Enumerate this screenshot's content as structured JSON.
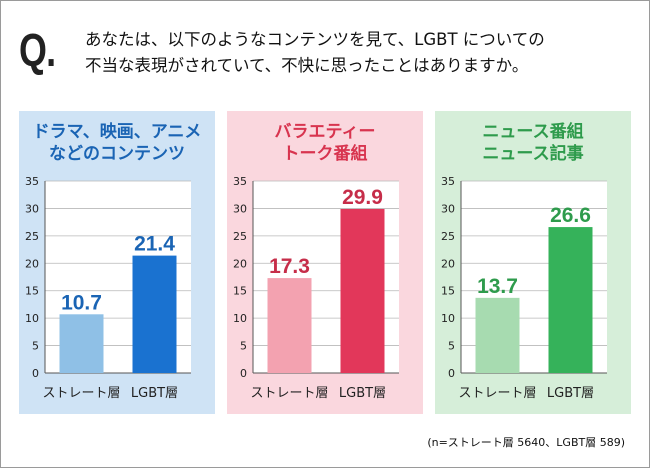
{
  "question": {
    "mark": "Q.",
    "line1": "あなたは、以下のようなコンテンツを見て、LGBT についての",
    "line2": "不当な表現がされていて、不快に思ったことはありますか。"
  },
  "footnote": "(n=ストレート層 5640、LGBT層 589)",
  "chart_data": [
    {
      "type": "bar",
      "title_lines": [
        "ドラマ、映画、アニメ",
        "などのコンテンツ"
      ],
      "categories": [
        "ストレート層",
        "LGBT層"
      ],
      "values": [
        10.7,
        21.4
      ],
      "value_labels": [
        "10.7",
        "21.4"
      ],
      "yticks": [
        "0",
        "5",
        "10",
        "15",
        "20",
        "25",
        "30",
        "35"
      ],
      "ylim": [
        0,
        35
      ],
      "colors": {
        "panel": "#cfe3f5",
        "title": "#1a64b4",
        "bars": [
          "#8fc0e6",
          "#1a72d0"
        ],
        "labels": [
          "#1a64b4",
          "#1a64b4"
        ]
      }
    },
    {
      "type": "bar",
      "title_lines": [
        "バラエティー",
        "トーク番組"
      ],
      "categories": [
        "ストレート層",
        "LGBT層"
      ],
      "values": [
        17.3,
        29.9
      ],
      "value_labels": [
        "17.3",
        "29.9"
      ],
      "yticks": [
        "0",
        "5",
        "10",
        "15",
        "20",
        "25",
        "30",
        "35"
      ],
      "ylim": [
        0,
        35
      ],
      "colors": {
        "panel": "#fad7de",
        "title": "#d8344f",
        "bars": [
          "#f3a2b0",
          "#e2375a"
        ],
        "labels": [
          "#c62d49",
          "#c62d49"
        ]
      }
    },
    {
      "type": "bar",
      "title_lines": [
        "ニュース番組",
        "ニュース記事"
      ],
      "categories": [
        "ストレート層",
        "LGBT層"
      ],
      "values": [
        13.7,
        26.6
      ],
      "value_labels": [
        "13.7",
        "26.6"
      ],
      "yticks": [
        "0",
        "5",
        "10",
        "15",
        "20",
        "25",
        "30",
        "35"
      ],
      "ylim": [
        0,
        35
      ],
      "colors": {
        "panel": "#d6eed9",
        "title": "#2e9b4c",
        "bars": [
          "#a7dbb0",
          "#35b25a"
        ],
        "labels": [
          "#2e9b4c",
          "#2e9b4c"
        ]
      }
    }
  ]
}
